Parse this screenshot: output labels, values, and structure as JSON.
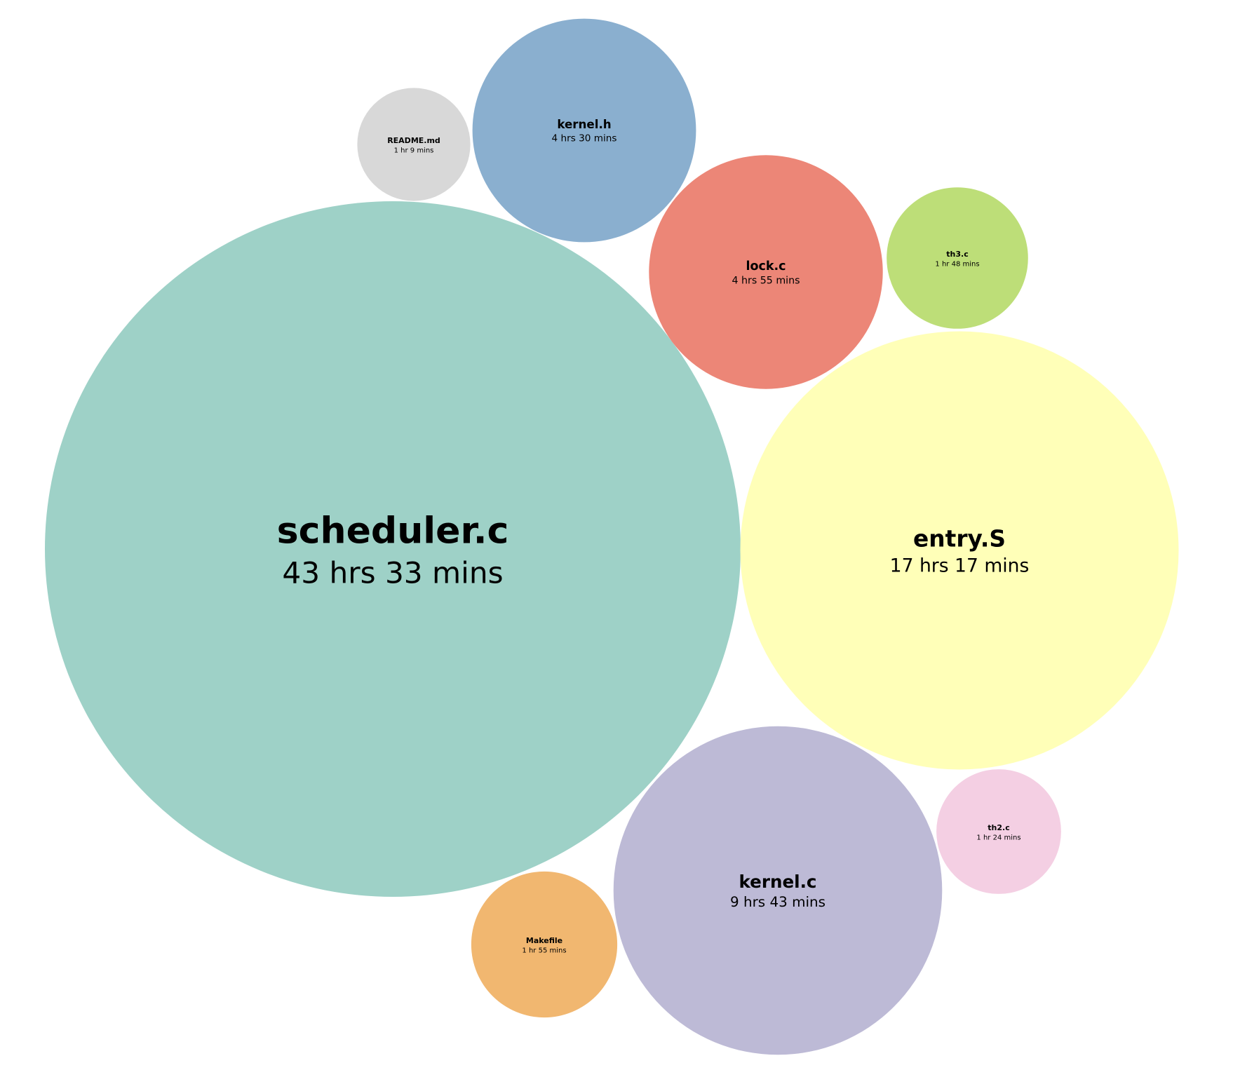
{
  "chart_data": {
    "type": "bubble",
    "unit": "minutes",
    "items": [
      {
        "name": "scheduler.c",
        "label": "43 hrs 33 mins",
        "minutes": 2613,
        "color": "#9ed1c7"
      },
      {
        "name": "entry.S",
        "label": "17 hrs 17 mins",
        "minutes": 1037,
        "color": "#ffffb8"
      },
      {
        "name": "kernel.c",
        "label": "9 hrs 43 mins",
        "minutes": 583,
        "color": "#bdbad6"
      },
      {
        "name": "lock.c",
        "label": "4 hrs 55 mins",
        "minutes": 295,
        "color": "#ec8677"
      },
      {
        "name": "kernel.h",
        "label": "4 hrs 30 mins",
        "minutes": 270,
        "color": "#8aafcf"
      },
      {
        "name": "Makefile",
        "label": "1 hr 55 mins",
        "minutes": 115,
        "color": "#f1b770"
      },
      {
        "name": "th3.c",
        "label": "1 hr 48 mins",
        "minutes": 108,
        "color": "#bdde78"
      },
      {
        "name": "th2.c",
        "label": "1 hr 24 mins",
        "minutes": 84,
        "color": "#f4cfe3"
      },
      {
        "name": "README.md",
        "label": "1 hr 9 mins",
        "minutes": 69,
        "color": "#d8d8d8"
      }
    ]
  }
}
